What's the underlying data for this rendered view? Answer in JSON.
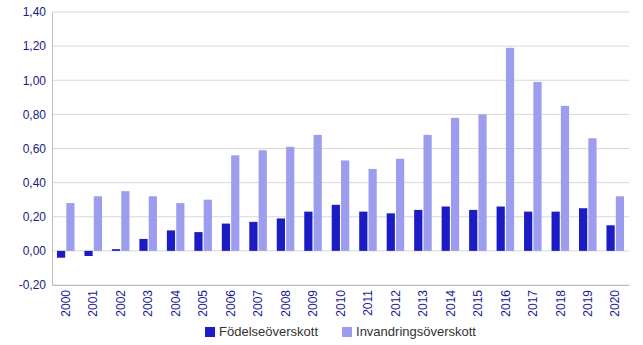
{
  "chart_data": {
    "type": "bar",
    "categories": [
      "2000",
      "2001",
      "2002",
      "2003",
      "2004",
      "2005",
      "2006",
      "2007",
      "2008",
      "2009",
      "2010",
      "2011",
      "2012",
      "2013",
      "2014",
      "2015",
      "2016",
      "2017",
      "2018",
      "2019",
      "2020"
    ],
    "series": [
      {
        "name": "Födelseöverskott",
        "color": "#1c1cc4",
        "values": [
          -0.04,
          -0.03,
          0.01,
          0.07,
          0.12,
          0.11,
          0.16,
          0.17,
          0.19,
          0.23,
          0.27,
          0.23,
          0.22,
          0.24,
          0.26,
          0.24,
          0.26,
          0.23,
          0.23,
          0.25,
          0.15
        ]
      },
      {
        "name": "Invandringsöverskott",
        "color": "#9d9df0",
        "values": [
          0.28,
          0.32,
          0.35,
          0.32,
          0.28,
          0.3,
          0.56,
          0.59,
          0.61,
          0.68,
          0.53,
          0.48,
          0.54,
          0.68,
          0.78,
          0.8,
          1.19,
          0.99,
          0.85,
          0.66,
          0.32
        ]
      }
    ],
    "ylim": [
      -0.2,
      1.4
    ],
    "yticks": [
      {
        "value": -0.2,
        "label": "-0,20"
      },
      {
        "value": 0,
        "label": "0,00"
      },
      {
        "value": 0.2,
        "label": "0,20"
      },
      {
        "value": 0.4,
        "label": "0,40"
      },
      {
        "value": 0.6,
        "label": "0,60"
      },
      {
        "value": 0.8,
        "label": "0,80"
      },
      {
        "value": 1.0,
        "label": "1,00"
      },
      {
        "value": 1.2,
        "label": "1,20"
      },
      {
        "value": 1.4,
        "label": "1,40"
      }
    ],
    "grid": true,
    "legend": "bottom"
  }
}
